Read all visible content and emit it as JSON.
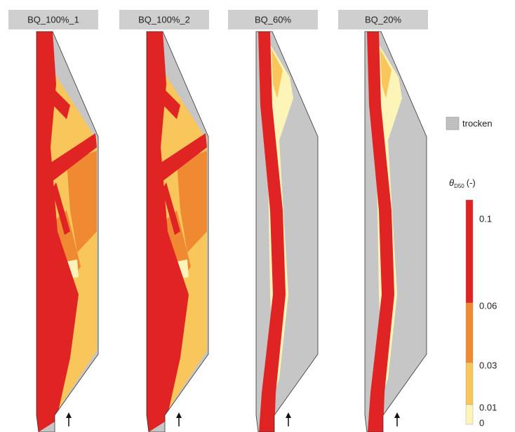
{
  "panels": [
    {
      "title": "BQ_100%_1"
    },
    {
      "title": "BQ_100%_2"
    },
    {
      "title": "BQ_60%"
    },
    {
      "title": "BQ_20%"
    }
  ],
  "legend": {
    "dry_label": "trocken",
    "scale_title": {
      "symbol": "θ",
      "subscript": "D50",
      "unit": "(-)"
    },
    "scale_labels": [
      "0.1",
      "0.06",
      "0.03",
      "0.01",
      "0"
    ]
  }
}
